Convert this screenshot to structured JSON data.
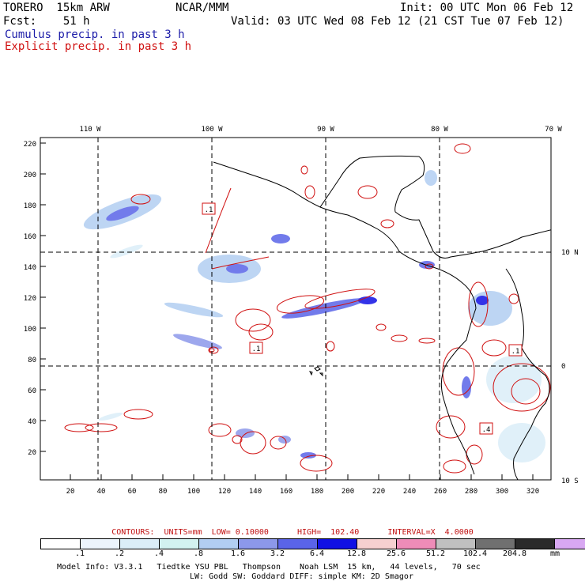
{
  "header": {
    "model": "TORERO  15km ARW",
    "org": "NCAR/MMM",
    "init": "Init: 00 UTC Mon 06 Feb 12",
    "fcst": "Fcst:    51 h",
    "valid": "Valid: 03 UTC Wed 08 Feb 12 (21 CST Tue 07 Feb 12)",
    "legend_cumulus": "Cumulus precip. in past 3 h",
    "legend_explicit": "Explicit precip. in past 3 h"
  },
  "axes": {
    "lon_labels": [
      "110 W",
      "100 W",
      "90 W",
      "80 W",
      "70 W"
    ],
    "lat_labels": [
      "10 N",
      "0",
      "10 S"
    ],
    "y_ticks": [
      "220",
      "200",
      "180",
      "160",
      "140",
      "120",
      "100",
      "80",
      "60",
      "40",
      "20"
    ],
    "x_ticks": [
      "20",
      "40",
      "60",
      "80",
      "100",
      "120",
      "140",
      "160",
      "180",
      "200",
      "220",
      "240",
      "260",
      "280",
      "300",
      "320"
    ]
  },
  "contour_labels": [
    ".1",
    ".1",
    ".1",
    ".4"
  ],
  "contours_info": "CONTOURS:  UNITS=mm  LOW= 0.10000      HIGH=  102.40      INTERVAL=X  4.0000",
  "colorbar": {
    "colors": [
      "#ffffff",
      "#ecf4fc",
      "#dbeef8",
      "#d2f2f0",
      "#b2cef2",
      "#8c98ea",
      "#5a64e8",
      "#1010e4",
      "#f6d0d0",
      "#ee8cb8",
      "#c0c0c0",
      "#707070",
      "#2a2a2a",
      "#d8a8f2"
    ],
    "labels": [
      ".1",
      ".2",
      ".4",
      ".8",
      "1.6",
      "3.2",
      "6.4",
      "12.8",
      "25.6",
      "51.2",
      "102.4",
      "204.8"
    ],
    "unit": "mm"
  },
  "footer": {
    "line1": "Model Info: V3.3.1   Tiedtke YSU PBL   Thompson    Noah LSM  15 km,   44 levels,   70 sec",
    "line2": "LW: Godd SW: Goddard DIFF: simple KM: 2D Smagor"
  },
  "colors": {
    "cumulus": "#1a1aa8",
    "explicit": "#d01010",
    "coast": "#000000"
  }
}
